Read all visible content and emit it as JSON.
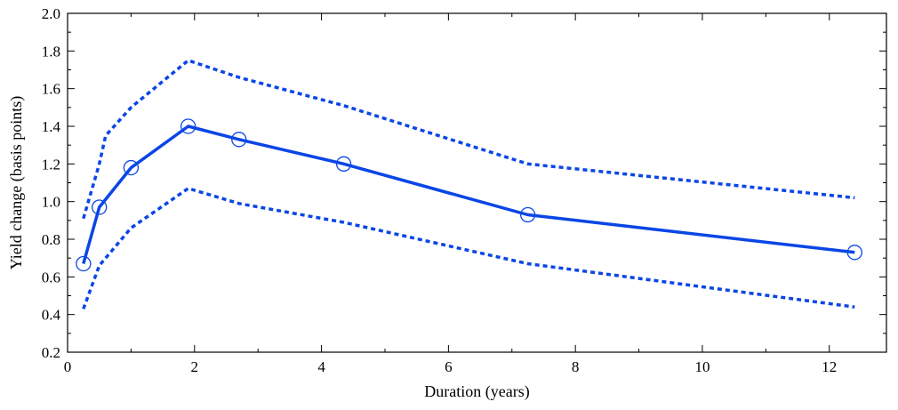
{
  "chart_data": {
    "type": "line",
    "title": "",
    "xlabel": "Duration (years)",
    "ylabel": "Yield change (basis points)",
    "xlim": [
      0,
      12.9
    ],
    "ylim": [
      0.2,
      2.0
    ],
    "x_ticks": [
      0,
      2,
      4,
      6,
      8,
      10,
      12
    ],
    "x_tick_labels": [
      "0",
      "2",
      "4",
      "6",
      "8",
      "10",
      "12"
    ],
    "y_ticks": [
      0.2,
      0.4,
      0.6,
      0.8,
      1.0,
      1.2,
      1.4,
      1.6,
      1.8,
      2.0
    ],
    "y_tick_labels": [
      "0.2",
      "0.4",
      "0.6",
      "0.8",
      "1.0",
      "1.2",
      "1.4",
      "1.6",
      "1.8",
      "2.0"
    ],
    "grid": false,
    "legend": "none",
    "colors": {
      "line": "#0a46e6",
      "axis": "#000000"
    },
    "series": [
      {
        "style": "solid",
        "markers": "open-circle",
        "x": [
          0.25,
          0.5,
          1.0,
          1.9,
          2.7,
          4.35,
          7.25,
          12.4
        ],
        "y": [
          0.67,
          0.97,
          1.18,
          1.4,
          1.33,
          1.2,
          0.93,
          0.73
        ]
      },
      {
        "style": "dotted",
        "markers": "none",
        "x": [
          0.25,
          0.5,
          0.6,
          1.0,
          1.9,
          2.7,
          4.35,
          7.25,
          12.4
        ],
        "y": [
          0.91,
          1.2,
          1.35,
          1.5,
          1.75,
          1.66,
          1.51,
          1.2,
          1.02
        ]
      },
      {
        "style": "dotted",
        "markers": "none",
        "x": [
          0.25,
          0.5,
          1.0,
          1.9,
          2.7,
          4.35,
          7.25,
          12.4
        ],
        "y": [
          0.43,
          0.66,
          0.86,
          1.07,
          0.99,
          0.89,
          0.67,
          0.44
        ]
      }
    ]
  }
}
